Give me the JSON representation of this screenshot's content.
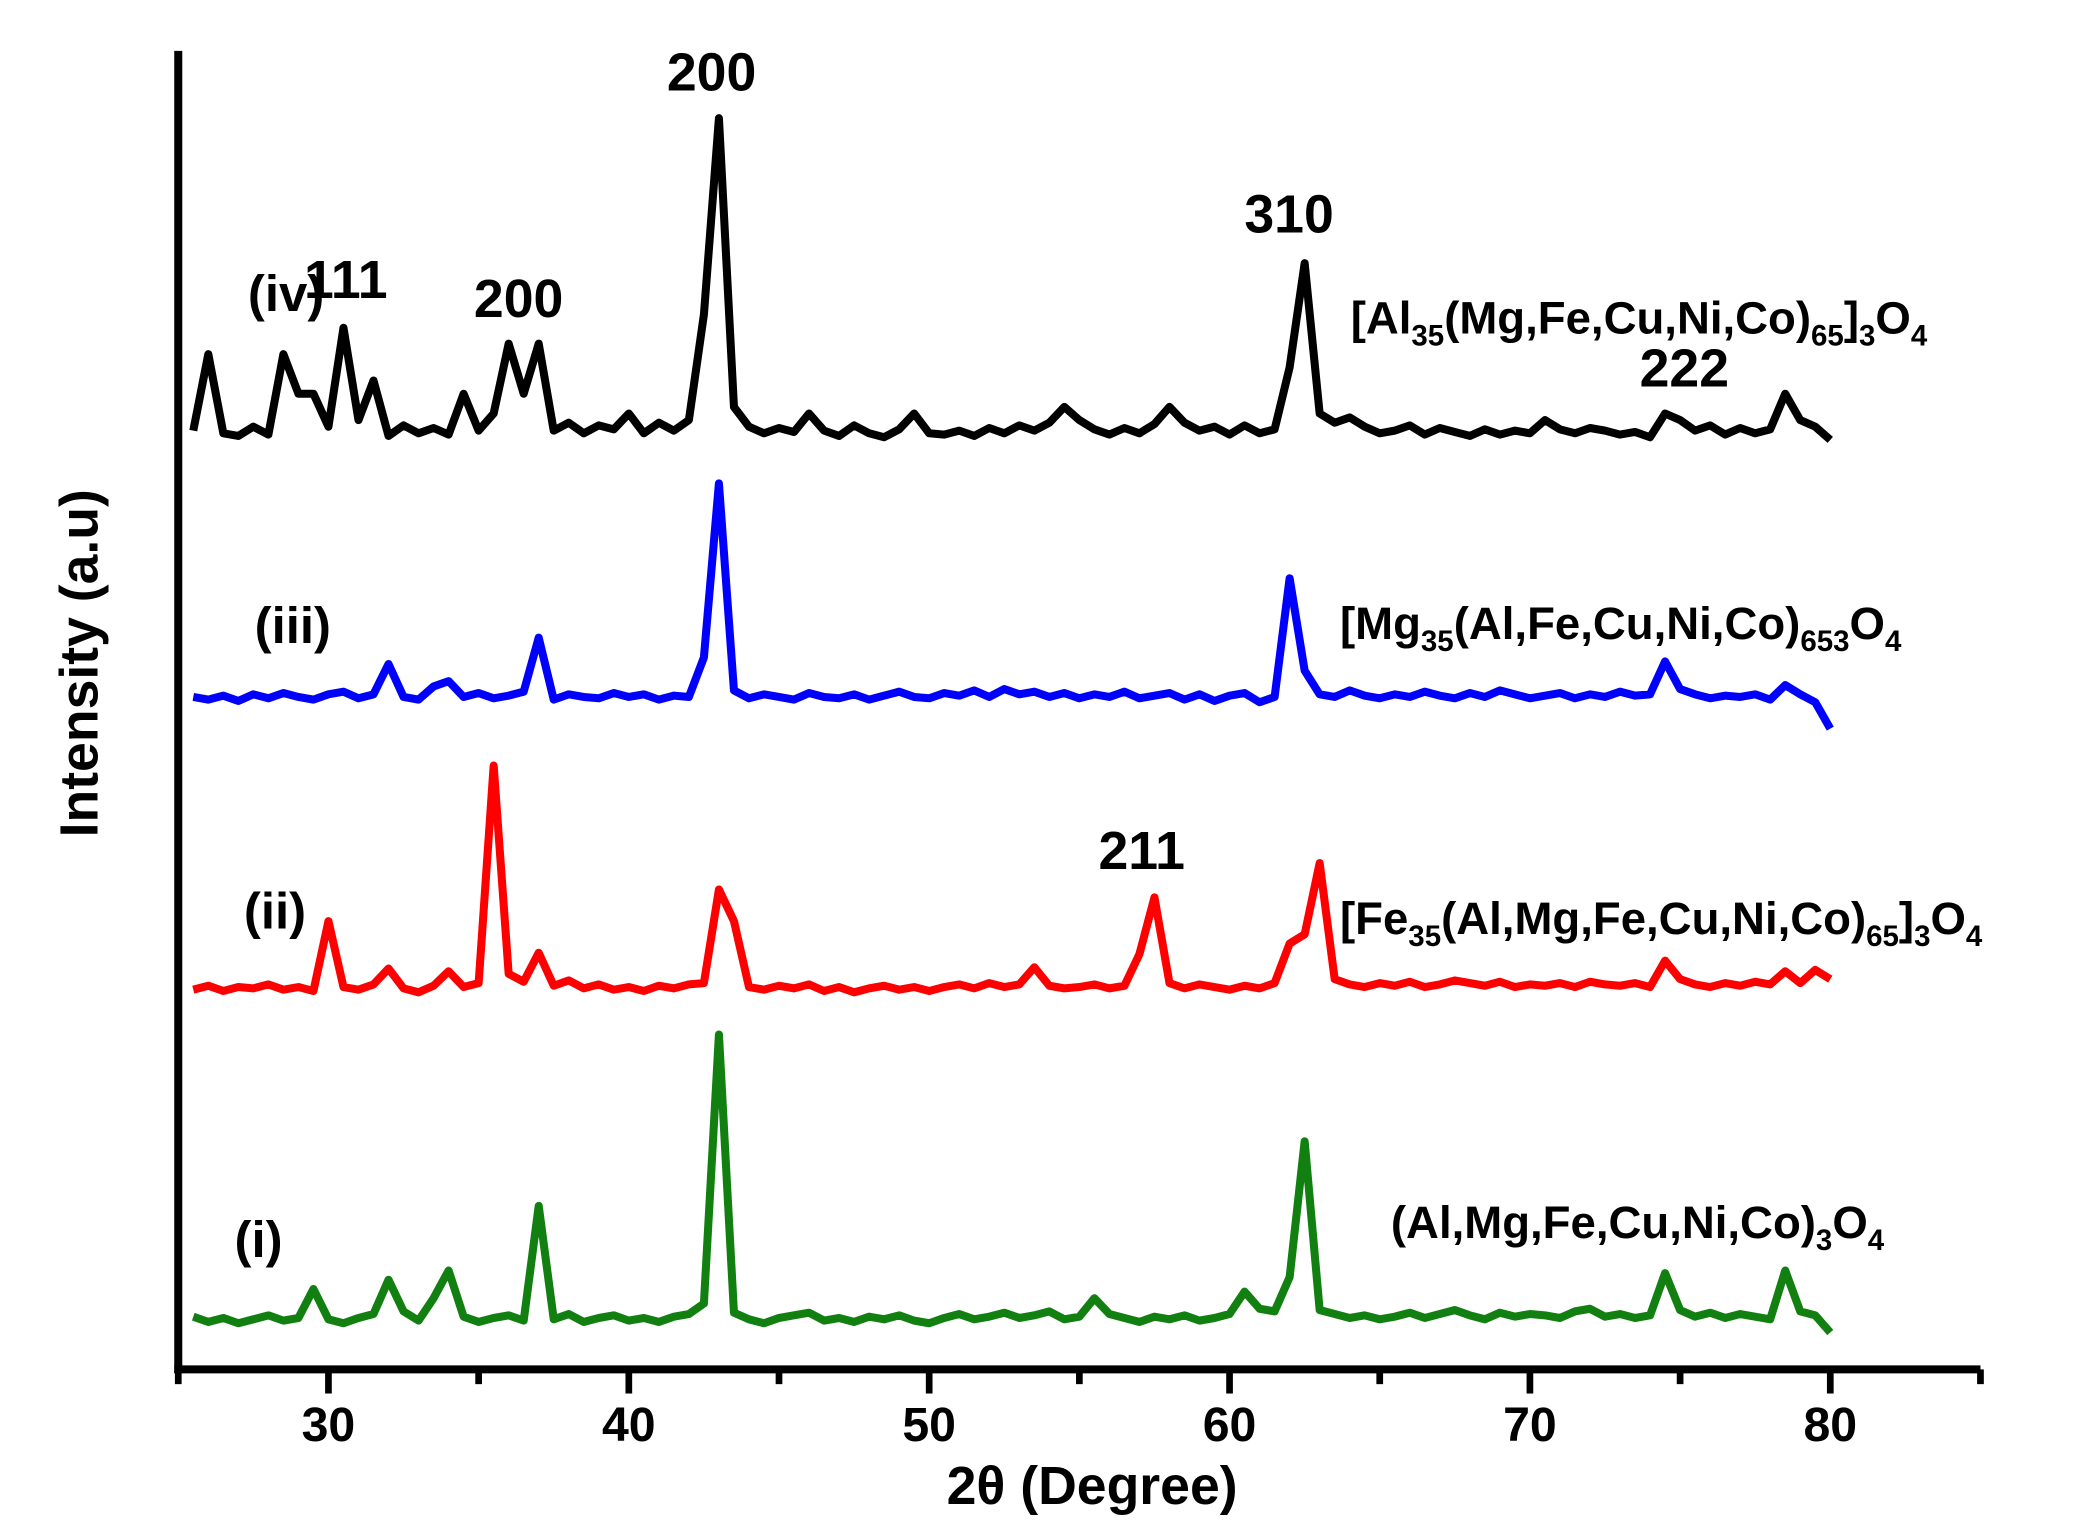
{
  "chart_data": {
    "type": "line",
    "xlabel": "2θ (Degree)",
    "ylabel": "Intensity (a.u)",
    "xlim": [
      25,
      85
    ],
    "xticks": [
      30,
      40,
      50,
      60,
      70,
      80
    ],
    "xminor_ticks": [
      25,
      35,
      45,
      55,
      65,
      75,
      85
    ],
    "ylim": [
      0,
      100
    ],
    "x": [
      25.5,
      26,
      26.5,
      27,
      27.5,
      28,
      28.5,
      29,
      29.5,
      30,
      30.5,
      31,
      31.5,
      32,
      32.5,
      33,
      33.5,
      34,
      34.5,
      35,
      35.5,
      36,
      36.5,
      37,
      37.5,
      38,
      38.5,
      39,
      39.5,
      40,
      40.5,
      41,
      41.5,
      42,
      42.5,
      43,
      43.5,
      44,
      44.5,
      45,
      45.5,
      46,
      46.5,
      47,
      47.5,
      48,
      48.5,
      49,
      49.5,
      50,
      50.5,
      51,
      51.5,
      52,
      52.5,
      53,
      53.5,
      54,
      54.5,
      55,
      55.5,
      56,
      56.5,
      57,
      57.5,
      58,
      58.5,
      59,
      59.5,
      60,
      60.5,
      61,
      61.5,
      62,
      62.5,
      63,
      63.5,
      64,
      64.5,
      65,
      65.5,
      66,
      66.5,
      67,
      67.5,
      68,
      68.5,
      69,
      69.5,
      70,
      70.5,
      71,
      71.5,
      72,
      72.5,
      73,
      73.5,
      74,
      74.5,
      75,
      75.5,
      76,
      76.5,
      77,
      77.5,
      78,
      78.5,
      79,
      79.5,
      80
    ],
    "series": [
      {
        "name": "(i)",
        "color": "#118011",
        "formula": [
          "(Al,Mg,Fe,Cu,Ni,Co)",
          "3",
          "O",
          "4"
        ],
        "values": [
          4.0,
          3.6,
          3.9,
          3.5,
          3.8,
          4.1,
          3.7,
          3.9,
          6.1,
          3.8,
          3.5,
          3.9,
          4.2,
          6.8,
          4.4,
          3.7,
          5.4,
          7.5,
          4.0,
          3.6,
          3.9,
          4.1,
          3.7,
          12.4,
          3.8,
          4.2,
          3.6,
          3.9,
          4.1,
          3.7,
          3.9,
          3.6,
          4.0,
          4.2,
          5,
          25.4,
          4.3,
          3.8,
          3.5,
          3.9,
          4.1,
          4.3,
          3.7,
          3.9,
          3.6,
          4.0,
          3.8,
          4.1,
          3.7,
          3.5,
          3.9,
          4.2,
          3.8,
          4.0,
          4.3,
          3.9,
          4.1,
          4.4,
          3.8,
          4.0,
          5.4,
          4.2,
          3.9,
          3.6,
          4.0,
          3.8,
          4.1,
          3.7,
          3.9,
          4.2,
          5.9,
          4.6,
          4.4,
          7,
          17.3,
          4.5,
          4.2,
          3.9,
          4.1,
          3.8,
          4.0,
          4.3,
          3.9,
          4.2,
          4.5,
          4.1,
          3.8,
          4.3,
          4.0,
          4.2,
          4.1,
          3.9,
          4.4,
          4.6,
          4.0,
          4.2,
          3.9,
          4.1,
          7.3,
          4.5,
          4.0,
          4.3,
          3.9,
          4.2,
          4.0,
          3.8,
          7.5,
          4.4,
          4.1,
          2.8
        ]
      },
      {
        "name": "(ii)",
        "color": "#ff0000",
        "formula": [
          "[Fe",
          "35",
          "(Al,Mg,Fe,Cu,Ni,Co)",
          "65",
          "]",
          "3",
          "O",
          "4"
        ],
        "values": [
          28.8,
          29.1,
          28.7,
          29.0,
          28.9,
          29.2,
          28.8,
          29.0,
          28.7,
          34,
          29.0,
          28.8,
          29.2,
          30.4,
          28.9,
          28.6,
          29.1,
          30.2,
          29.0,
          29.3,
          45.8,
          30,
          29.4,
          31.6,
          29.1,
          29.5,
          28.9,
          29.2,
          28.8,
          29.0,
          28.7,
          29.1,
          28.9,
          29.2,
          29.3,
          36.4,
          34,
          29.0,
          28.8,
          29.1,
          28.9,
          29.2,
          28.7,
          29.0,
          28.6,
          28.9,
          29.1,
          28.8,
          29.0,
          28.7,
          29.0,
          29.2,
          28.9,
          29.3,
          29.0,
          29.2,
          30.5,
          29.1,
          28.9,
          29.0,
          29.2,
          28.9,
          29.1,
          31.5,
          35.8,
          29.3,
          28.9,
          29.2,
          29.0,
          28.8,
          29.1,
          28.9,
          29.3,
          32.3,
          33,
          38.4,
          29.6,
          29.2,
          29.0,
          29.3,
          29.1,
          29.4,
          29.0,
          29.2,
          29.5,
          29.3,
          29.1,
          29.4,
          29.0,
          29.2,
          29.1,
          29.3,
          29.0,
          29.4,
          29.2,
          29.1,
          29.3,
          29.0,
          31,
          29.6,
          29.2,
          29.0,
          29.3,
          29.1,
          29.4,
          29.2,
          30.2,
          29.3,
          30.3,
          29.6
        ]
      },
      {
        "name": "(iii)",
        "color": "#0000ff",
        "formula": [
          "[Mg",
          "35",
          "(Al,Fe,Cu,Ni,Co)",
          "653",
          "O",
          "4"
        ],
        "values": [
          51.0,
          50.8,
          51.1,
          50.7,
          51.2,
          50.9,
          51.3,
          51.0,
          50.8,
          51.2,
          51.4,
          50.9,
          51.2,
          53.5,
          51.0,
          50.8,
          51.8,
          52.2,
          51.0,
          51.3,
          50.9,
          51.1,
          51.4,
          55.5,
          50.8,
          51.2,
          51.0,
          50.9,
          51.3,
          51.0,
          51.2,
          50.8,
          51.1,
          51.0,
          54,
          67.2,
          51.5,
          50.9,
          51.2,
          51.0,
          50.8,
          51.3,
          51.0,
          50.9,
          51.2,
          50.8,
          51.1,
          51.4,
          51.0,
          50.9,
          51.3,
          51.1,
          51.5,
          51.0,
          51.6,
          51.2,
          51.4,
          51.0,
          51.3,
          50.9,
          51.2,
          51.0,
          51.4,
          50.9,
          51.1,
          51.3,
          50.8,
          51.2,
          50.7,
          51.1,
          51.3,
          50.6,
          51.0,
          60,
          53,
          51.2,
          51.0,
          51.5,
          51.1,
          50.9,
          51.2,
          51.0,
          51.4,
          51.1,
          50.9,
          51.3,
          51.0,
          51.5,
          51.2,
          50.9,
          51.1,
          51.3,
          50.9,
          51.2,
          51.0,
          51.4,
          51.1,
          51.2,
          53.7,
          51.6,
          51.2,
          50.9,
          51.1,
          51.0,
          51.2,
          50.8,
          51.9,
          51.2,
          50.6,
          48.6
        ]
      },
      {
        "name": "(iv)",
        "color": "#000000",
        "formula": [
          "[Al",
          "35",
          "(Mg,Fe,Cu,Ni,Co)",
          "65",
          "]",
          "3",
          "O",
          "4"
        ],
        "values": [
          71.2,
          77,
          71.0,
          70.8,
          71.5,
          70.9,
          77,
          74,
          74,
          71.5,
          79,
          72,
          75,
          70.8,
          71.6,
          71.0,
          71.4,
          70.9,
          74,
          71.2,
          72.5,
          77.8,
          74,
          77.8,
          71.2,
          71.8,
          71.0,
          71.6,
          71.3,
          72.5,
          71.0,
          71.8,
          71.2,
          72,
          80,
          94.9,
          73,
          71.5,
          71.0,
          71.4,
          71.1,
          72.5,
          71.2,
          70.8,
          71.6,
          71.0,
          70.7,
          71.3,
          72.5,
          71.0,
          70.9,
          71.2,
          70.8,
          71.4,
          71.0,
          71.6,
          71.2,
          71.8,
          73,
          72,
          71.3,
          70.9,
          71.4,
          71.0,
          71.7,
          73,
          71.8,
          71.2,
          71.5,
          70.9,
          71.6,
          71.0,
          71.3,
          76,
          83.9,
          72.5,
          71.8,
          72.2,
          71.5,
          71.0,
          71.2,
          71.6,
          70.9,
          71.4,
          71.1,
          70.8,
          71.3,
          70.9,
          71.2,
          71.0,
          72,
          71.3,
          71.0,
          71.4,
          71.2,
          70.9,
          71.1,
          70.7,
          72.5,
          72,
          71.2,
          71.6,
          70.9,
          71.4,
          71.0,
          71.3,
          74,
          72,
          71.5,
          70.5
        ]
      }
    ],
    "annotations": [
      "111",
      "200",
      "200",
      "310",
      "222",
      "211"
    ]
  }
}
